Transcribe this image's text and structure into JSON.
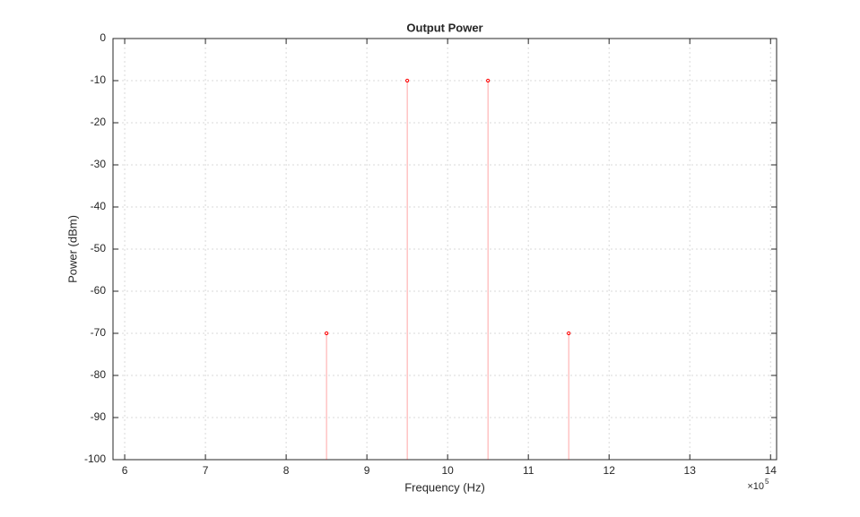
{
  "chart_data": {
    "type": "stem",
    "title": "Output Power",
    "x_label": "Frequency (Hz)",
    "y_label": "Power (dBm)",
    "x_exponent_base": "×10",
    "x_exponent": "5",
    "x": [
      850000,
      950000,
      1050000,
      1150000
    ],
    "values": [
      -70,
      -10,
      -10,
      -70
    ],
    "color": "#ff0000",
    "xlim": [
      585500,
      1407500
    ],
    "ylim": [
      -100,
      0
    ],
    "xticks": [
      {
        "value": 600000,
        "label": "6"
      },
      {
        "value": 700000,
        "label": "7"
      },
      {
        "value": 800000,
        "label": "8"
      },
      {
        "value": 900000,
        "label": "9"
      },
      {
        "value": 1000000,
        "label": "10"
      },
      {
        "value": 1100000,
        "label": "11"
      },
      {
        "value": 1200000,
        "label": "12"
      },
      {
        "value": 1300000,
        "label": "13"
      },
      {
        "value": 1400000,
        "label": "14"
      }
    ],
    "yticks": [
      0,
      -10,
      -20,
      -30,
      -40,
      -50,
      -60,
      -70,
      -80,
      -90,
      -100
    ],
    "grid": true
  }
}
